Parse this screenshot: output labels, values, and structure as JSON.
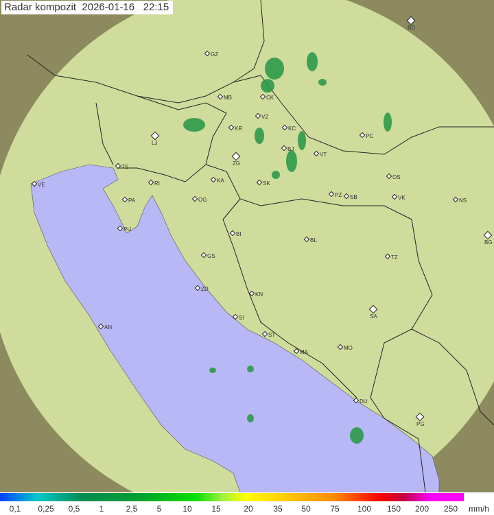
{
  "title": {
    "label": "Radar kompozit",
    "date": "2026-01-16",
    "time": "22:15"
  },
  "colors": {
    "land": "#cfdc9c",
    "outside": "#8c8a5e",
    "sea": "#b8b8f6",
    "border": "#222222"
  },
  "cities": [
    "BD",
    "GZ",
    "MB",
    "CK",
    "VZ",
    "KR",
    "KC",
    "LJ",
    "PC",
    "VT",
    "BJ",
    "ZG",
    "TS",
    "VE",
    "RI",
    "KA",
    "SK",
    "OS",
    "PA",
    "OG",
    "PZ",
    "SB",
    "VK",
    "NS",
    "PU",
    "BI",
    "BL",
    "BG",
    "GS",
    "TZ",
    "ZD",
    "KN",
    "SA",
    "AN",
    "SI",
    "ST",
    "MO",
    "MA",
    "DU",
    "PG"
  ],
  "legend": {
    "labels": [
      "0,1",
      "0,25",
      "0,5",
      "1",
      "2,5",
      "5",
      "10",
      "15",
      "20",
      "35",
      "50",
      "75",
      "100",
      "150",
      "200",
      "250"
    ],
    "unit": "mm/h"
  }
}
